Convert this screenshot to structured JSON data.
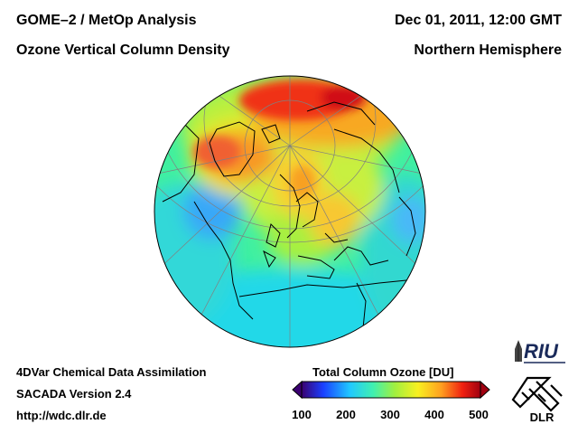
{
  "header": {
    "title_line1": "GOME–2 / MetOp Analysis",
    "title_line2": "Ozone Vertical Column Density",
    "date": "Dec 01, 2011, 12:00 GMT",
    "region": "Northern Hemisphere"
  },
  "footer": {
    "line1": "4DVar Chemical Data Assimilation",
    "line2": "SACADA Version 2.4",
    "url": "http://wdc.dlr.de"
  },
  "colorbar": {
    "title": "Total Column Ozone [DU]",
    "ticks": [
      "100",
      "200",
      "300",
      "400",
      "500"
    ],
    "min": 100,
    "max": 500,
    "colors": [
      "#3a0070",
      "#1a40ff",
      "#20c8ff",
      "#40f0b0",
      "#a0f040",
      "#f8f020",
      "#ffa020",
      "#f02010",
      "#a00010"
    ]
  },
  "logos": {
    "riu": "RIU",
    "dlr": "DLR"
  }
}
